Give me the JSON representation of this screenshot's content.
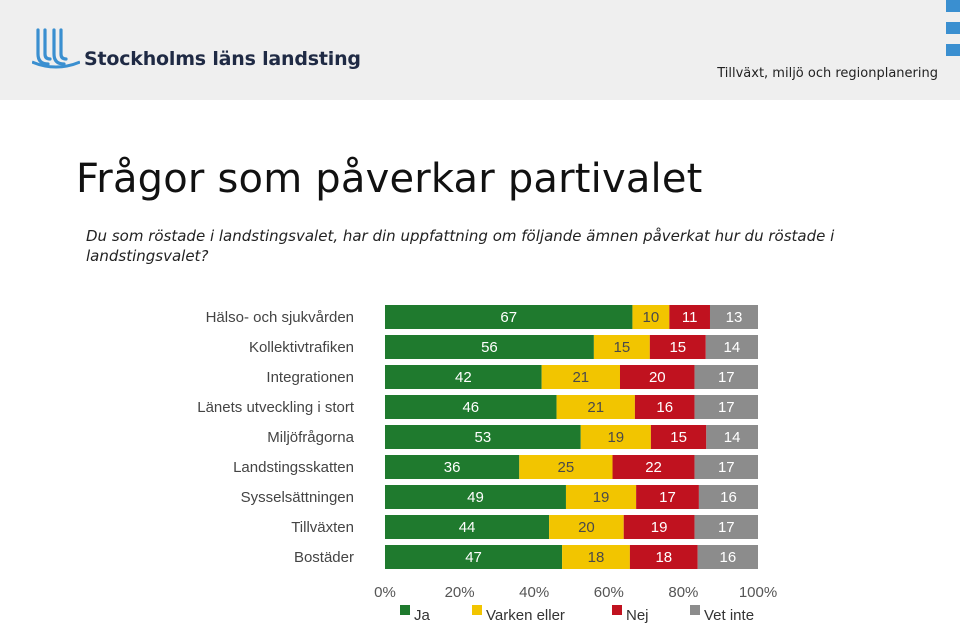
{
  "header": {
    "logo_text": "Stockholms läns landsting",
    "department": "Tillväxt, miljö och regionplanering"
  },
  "slide": {
    "title": "Frågor som påverkar partivalet",
    "question": "Du som röstade i landstingsvalet, har din uppfattning om följande ämnen påverkat hur du röstade i landstingsvalet?"
  },
  "icons": [
    "sll-logo-icon",
    "corner-squares-icon"
  ],
  "chart_data": {
    "type": "bar",
    "orientation": "horizontal",
    "stacked": true,
    "normalized": true,
    "categories": [
      "Hälso- och sjukvården",
      "Kollektivtrafiken",
      "Integrationen",
      "Länets utveckling i stort",
      "Miljöfrågorna",
      "Landstingsskatten",
      "Sysselsättningen",
      "Tillväxten",
      "Bostäder"
    ],
    "series": [
      {
        "name": "Ja",
        "color": "#1f7a2e",
        "values": [
          67,
          56,
          42,
          46,
          53,
          36,
          49,
          44,
          47
        ]
      },
      {
        "name": "Varken eller",
        "color": "#f2c500",
        "values": [
          10,
          15,
          21,
          21,
          19,
          25,
          19,
          20,
          18
        ]
      },
      {
        "name": "Nej",
        "color": "#c0121f",
        "values": [
          11,
          15,
          20,
          16,
          15,
          22,
          17,
          19,
          18
        ]
      },
      {
        "name": "Vet inte",
        "color": "#8c8c8c",
        "values": [
          13,
          14,
          17,
          17,
          14,
          17,
          16,
          17,
          16
        ]
      }
    ],
    "xticks": [
      "0%",
      "20%",
      "40%",
      "60%",
      "80%",
      "100%"
    ],
    "xlim": [
      0,
      100
    ],
    "grid": false,
    "legend": "bottom",
    "title": "",
    "xlabel": "",
    "ylabel": ""
  }
}
